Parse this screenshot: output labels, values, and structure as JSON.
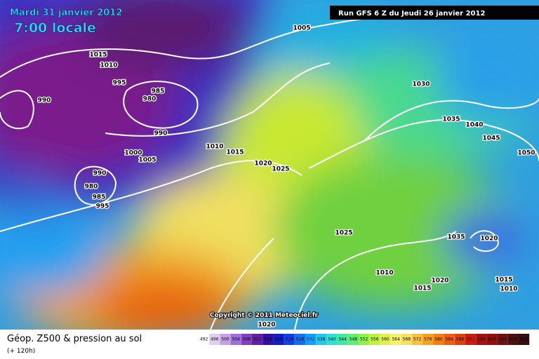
{
  "header": {
    "date": "Mardi 31 janvier 2012",
    "time": "7:00 locale",
    "run": "Run GFS 6 Z du Jeudi 26 janvier 2012"
  },
  "copyright": "Copyright © 2011 Meteociel.fr",
  "isobar_labels": [
    "1005",
    "1015",
    "1010",
    "995",
    "985",
    "980",
    "990",
    "990",
    "1000",
    "1005",
    "1010",
    "1015",
    "1020",
    "1025",
    "990",
    "980",
    "985",
    "995",
    "1030",
    "1035",
    "1040",
    "1045",
    "1050",
    "1025",
    "1035",
    "1020",
    "1010",
    "1020",
    "1015",
    "1015",
    "1010",
    "1020"
  ],
  "footer": {
    "title": "Géop. Z500 & pression au sol",
    "lead": "(+ 120h)"
  },
  "scale": [
    "492",
    "496",
    "500",
    "504",
    "508",
    "512",
    "516",
    "520",
    "524",
    "528",
    "532",
    "536",
    "540",
    "544",
    "548",
    "552",
    "556",
    "560",
    "564",
    "568",
    "572",
    "576",
    "580",
    "584",
    "588",
    "592",
    "596",
    "600",
    "604",
    "608",
    "612"
  ]
}
